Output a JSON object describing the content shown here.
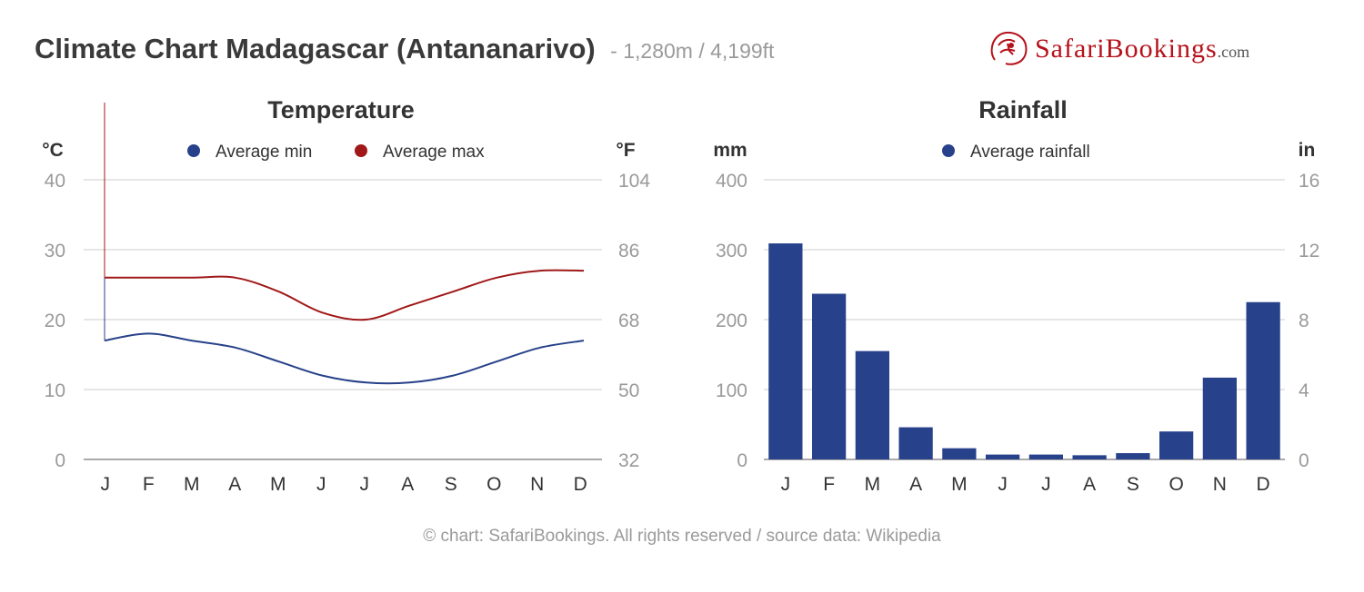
{
  "header": {
    "title": "Climate Chart Madagascar (Antananarivo)",
    "subtitle": "- 1,280m / 4,199ft",
    "brand": {
      "prefix": "Safari",
      "suffix": "Bookings",
      "tld": ".com",
      "color": "#b5121b",
      "icon": "lion-logo-icon"
    }
  },
  "footer": {
    "text": "© chart: SafariBookings. All rights reserved / source data: Wikipedia"
  },
  "colors": {
    "min": "#27418a",
    "max": "#a01818",
    "bar": "#27418a",
    "grid": "#cccccc",
    "tick": "#9a9a9a",
    "label": "#333333"
  },
  "chart_data": [
    {
      "type": "line",
      "title": "Temperature",
      "ylabel_left": "°C",
      "ylabel_right": "°F",
      "categories": [
        "J",
        "F",
        "M",
        "A",
        "M",
        "J",
        "J",
        "A",
        "S",
        "O",
        "N",
        "D"
      ],
      "ylim": [
        0,
        40
      ],
      "yticks": [
        0,
        10,
        20,
        30,
        40
      ],
      "yticks_right": [
        "32",
        "50",
        "68",
        "86",
        "104"
      ],
      "grid": true,
      "legend_position": "top",
      "series": [
        {
          "name": "Average min",
          "color": "#27418a",
          "values": [
            17,
            18,
            17,
            16,
            14,
            12,
            11,
            11,
            12,
            14,
            16,
            17
          ]
        },
        {
          "name": "Average max",
          "color": "#a01818",
          "values": [
            26,
            26,
            26,
            26,
            24,
            21,
            20,
            22,
            24,
            26,
            27,
            27
          ]
        }
      ]
    },
    {
      "type": "bar",
      "title": "Rainfall",
      "ylabel_left": "mm",
      "ylabel_right": "in",
      "categories": [
        "J",
        "F",
        "M",
        "A",
        "M",
        "J",
        "J",
        "A",
        "S",
        "O",
        "N",
        "D"
      ],
      "ylim": [
        0,
        400
      ],
      "yticks": [
        0,
        100,
        200,
        300,
        400
      ],
      "yticks_right": [
        "0",
        "4",
        "8",
        "12",
        "16"
      ],
      "grid": true,
      "legend_position": "top",
      "series": [
        {
          "name": "Average rainfall",
          "color": "#27418a",
          "values": [
            309,
            237,
            155,
            46,
            16,
            7,
            7,
            6,
            9,
            40,
            117,
            225
          ]
        }
      ]
    }
  ]
}
